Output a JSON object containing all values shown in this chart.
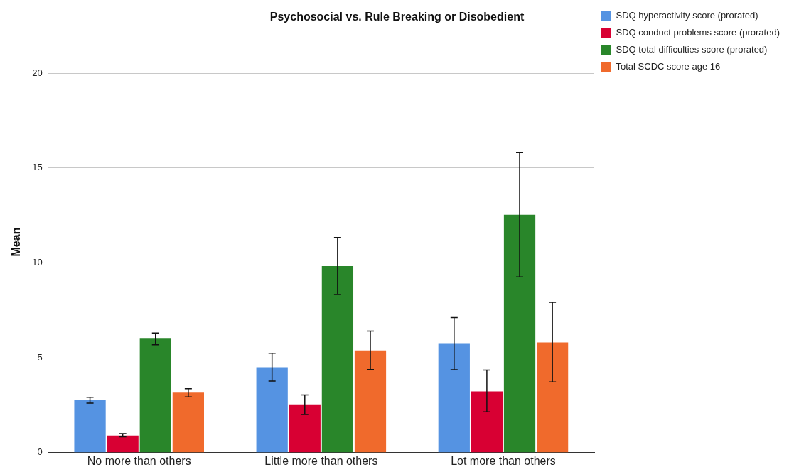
{
  "chart_data": {
    "type": "bar",
    "title": "Psychosocial vs. Rule Breaking or Disobedient",
    "ylabel": "Mean",
    "categories": [
      "No more than others",
      "Little more than others",
      "Lot more than others"
    ],
    "series": [
      {
        "name": "SDQ hyperactivity score (prorated)",
        "color": "#5593e2",
        "values": [
          2.76,
          4.5,
          5.73
        ],
        "errors": [
          [
            2.61,
            2.92
          ],
          [
            3.77,
            5.24
          ],
          [
            4.37,
            7.12
          ]
        ]
      },
      {
        "name": "SDQ conduct problems score (prorated)",
        "color": "#d80033",
        "values": [
          0.9,
          2.51,
          3.23
        ],
        "errors": [
          [
            0.83,
            1.0
          ],
          [
            2.01,
            3.04
          ],
          [
            2.15,
            4.35
          ]
        ]
      },
      {
        "name": "SDQ total difficulties score (prorated)",
        "color": "#29862a",
        "values": [
          6.0,
          9.83,
          12.53
        ],
        "errors": [
          [
            5.69,
            6.3
          ],
          [
            8.33,
            11.33
          ],
          [
            9.26,
            15.82
          ]
        ]
      },
      {
        "name": "Total SCDC score age 16",
        "color": "#f06a2c",
        "values": [
          3.16,
          5.39,
          5.81
        ],
        "errors": [
          [
            2.94,
            3.37
          ],
          [
            4.38,
            6.41
          ],
          [
            3.72,
            7.92
          ]
        ]
      }
    ],
    "ylim": [
      0,
      22.2
    ],
    "yticks": [
      0,
      5,
      10,
      15,
      20
    ],
    "grid": "y",
    "legend": "top right"
  }
}
